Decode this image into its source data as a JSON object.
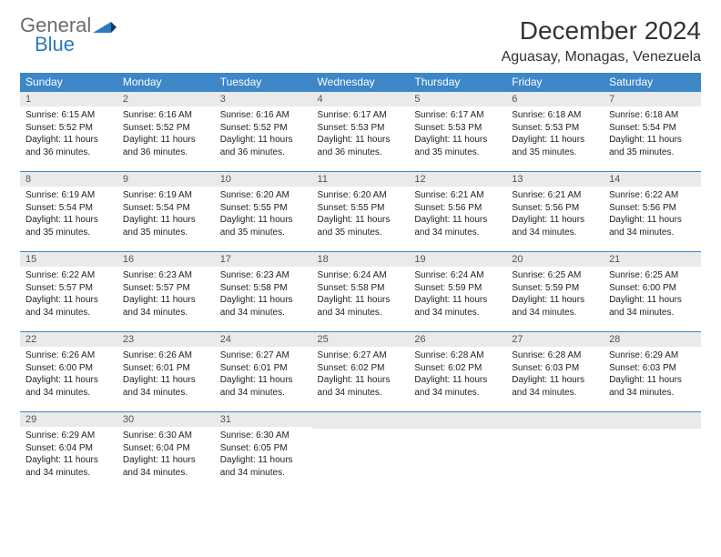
{
  "brand": {
    "line1": "General",
    "line2": "Blue"
  },
  "title": "December 2024",
  "location": "Aguasay, Monagas, Venezuela",
  "colors": {
    "header_bg": "#3d87c7",
    "daynum_bg": "#e9eaeb",
    "brand_gray": "#6b6b6b",
    "brand_blue": "#2a7bbf"
  },
  "weekdays": [
    "Sunday",
    "Monday",
    "Tuesday",
    "Wednesday",
    "Thursday",
    "Friday",
    "Saturday"
  ],
  "days": [
    {
      "n": "1",
      "sr": "6:15 AM",
      "ss": "5:52 PM",
      "dl": "11 hours and 36 minutes."
    },
    {
      "n": "2",
      "sr": "6:16 AM",
      "ss": "5:52 PM",
      "dl": "11 hours and 36 minutes."
    },
    {
      "n": "3",
      "sr": "6:16 AM",
      "ss": "5:52 PM",
      "dl": "11 hours and 36 minutes."
    },
    {
      "n": "4",
      "sr": "6:17 AM",
      "ss": "5:53 PM",
      "dl": "11 hours and 36 minutes."
    },
    {
      "n": "5",
      "sr": "6:17 AM",
      "ss": "5:53 PM",
      "dl": "11 hours and 35 minutes."
    },
    {
      "n": "6",
      "sr": "6:18 AM",
      "ss": "5:53 PM",
      "dl": "11 hours and 35 minutes."
    },
    {
      "n": "7",
      "sr": "6:18 AM",
      "ss": "5:54 PM",
      "dl": "11 hours and 35 minutes."
    },
    {
      "n": "8",
      "sr": "6:19 AM",
      "ss": "5:54 PM",
      "dl": "11 hours and 35 minutes."
    },
    {
      "n": "9",
      "sr": "6:19 AM",
      "ss": "5:54 PM",
      "dl": "11 hours and 35 minutes."
    },
    {
      "n": "10",
      "sr": "6:20 AM",
      "ss": "5:55 PM",
      "dl": "11 hours and 35 minutes."
    },
    {
      "n": "11",
      "sr": "6:20 AM",
      "ss": "5:55 PM",
      "dl": "11 hours and 35 minutes."
    },
    {
      "n": "12",
      "sr": "6:21 AM",
      "ss": "5:56 PM",
      "dl": "11 hours and 34 minutes."
    },
    {
      "n": "13",
      "sr": "6:21 AM",
      "ss": "5:56 PM",
      "dl": "11 hours and 34 minutes."
    },
    {
      "n": "14",
      "sr": "6:22 AM",
      "ss": "5:56 PM",
      "dl": "11 hours and 34 minutes."
    },
    {
      "n": "15",
      "sr": "6:22 AM",
      "ss": "5:57 PM",
      "dl": "11 hours and 34 minutes."
    },
    {
      "n": "16",
      "sr": "6:23 AM",
      "ss": "5:57 PM",
      "dl": "11 hours and 34 minutes."
    },
    {
      "n": "17",
      "sr": "6:23 AM",
      "ss": "5:58 PM",
      "dl": "11 hours and 34 minutes."
    },
    {
      "n": "18",
      "sr": "6:24 AM",
      "ss": "5:58 PM",
      "dl": "11 hours and 34 minutes."
    },
    {
      "n": "19",
      "sr": "6:24 AM",
      "ss": "5:59 PM",
      "dl": "11 hours and 34 minutes."
    },
    {
      "n": "20",
      "sr": "6:25 AM",
      "ss": "5:59 PM",
      "dl": "11 hours and 34 minutes."
    },
    {
      "n": "21",
      "sr": "6:25 AM",
      "ss": "6:00 PM",
      "dl": "11 hours and 34 minutes."
    },
    {
      "n": "22",
      "sr": "6:26 AM",
      "ss": "6:00 PM",
      "dl": "11 hours and 34 minutes."
    },
    {
      "n": "23",
      "sr": "6:26 AM",
      "ss": "6:01 PM",
      "dl": "11 hours and 34 minutes."
    },
    {
      "n": "24",
      "sr": "6:27 AM",
      "ss": "6:01 PM",
      "dl": "11 hours and 34 minutes."
    },
    {
      "n": "25",
      "sr": "6:27 AM",
      "ss": "6:02 PM",
      "dl": "11 hours and 34 minutes."
    },
    {
      "n": "26",
      "sr": "6:28 AM",
      "ss": "6:02 PM",
      "dl": "11 hours and 34 minutes."
    },
    {
      "n": "27",
      "sr": "6:28 AM",
      "ss": "6:03 PM",
      "dl": "11 hours and 34 minutes."
    },
    {
      "n": "28",
      "sr": "6:29 AM",
      "ss": "6:03 PM",
      "dl": "11 hours and 34 minutes."
    },
    {
      "n": "29",
      "sr": "6:29 AM",
      "ss": "6:04 PM",
      "dl": "11 hours and 34 minutes."
    },
    {
      "n": "30",
      "sr": "6:30 AM",
      "ss": "6:04 PM",
      "dl": "11 hours and 34 minutes."
    },
    {
      "n": "31",
      "sr": "6:30 AM",
      "ss": "6:05 PM",
      "dl": "11 hours and 34 minutes."
    }
  ],
  "labels": {
    "sunrise": "Sunrise:",
    "sunset": "Sunset:",
    "daylight": "Daylight:"
  }
}
